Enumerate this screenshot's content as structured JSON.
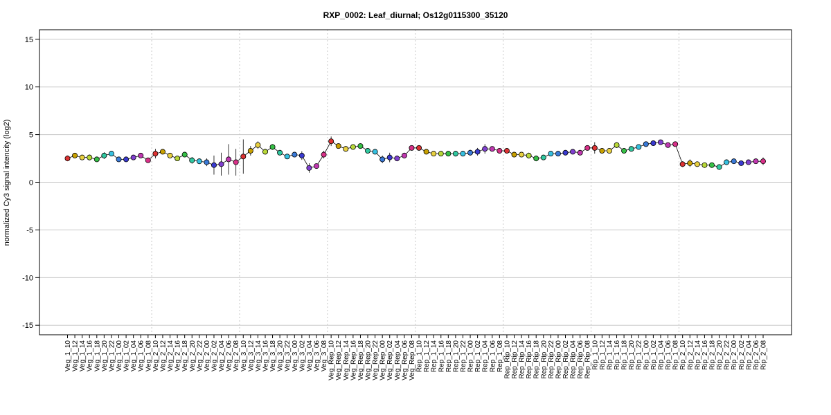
{
  "chart_data": {
    "type": "line",
    "title": "RXP_0002: Leaf_diurnal; Os12g0115300_35120",
    "ylabel": "normalized Cy3 signal intencity (log2)",
    "xlabel": "",
    "ylim": [
      -16,
      16
    ],
    "yticks": [
      -15,
      -10,
      -5,
      0,
      5,
      10,
      15
    ],
    "grid": true,
    "categories": [
      "Veg_1_10",
      "Veg_1_12",
      "Veg_1_14",
      "Veg_1_16",
      "Veg_1_18",
      "Veg_1_20",
      "Veg_1_22",
      "Veg_1_00",
      "Veg_1_02",
      "Veg_1_04",
      "Veg_1_06",
      "Veg_1_08",
      "Veg_2_10",
      "Veg_2_12",
      "Veg_2_14",
      "Veg_2_16",
      "Veg_2_18",
      "Veg_2_20",
      "Veg_2_22",
      "Veg_2_00",
      "Veg_2_02",
      "Veg_2_04",
      "Veg_2_06",
      "Veg_2_08",
      "Veg_3_10",
      "Veg_3_12",
      "Veg_3_14",
      "Veg_3_16",
      "Veg_3_18",
      "Veg_3_20",
      "Veg_3_22",
      "Veg_3_00",
      "Veg_3_02",
      "Veg_3_04",
      "Veg_3_06",
      "Veg_3_08",
      "Veg_Rep_10",
      "Veg_Rep_12",
      "Veg_Rep_14",
      "Veg_Rep_16",
      "Veg_Rep_18",
      "Veg_Rep_20",
      "Veg_Rep_22",
      "Veg_Rep_00",
      "Veg_Rep_02",
      "Veg_Rep_04",
      "Veg_Rep_06",
      "Veg_Rep_08",
      "Rep_1_10",
      "Rep_1_12",
      "Rep_1_14",
      "Rep_1_16",
      "Rep_1_18",
      "Rep_1_20",
      "Rep_1_22",
      "Rep_1_00",
      "Rep_1_02",
      "Rep_1_04",
      "Rep_1_06",
      "Rep_1_08",
      "Rep_Rip_10",
      "Rep_Rip_12",
      "Rep_Rip_14",
      "Rep_Rip_16",
      "Rep_Rip_18",
      "Rep_Rip_20",
      "Rep_Rip_22",
      "Rep_Rip_00",
      "Rep_Rip_02",
      "Rep_Rip_04",
      "Rep_Rip_06",
      "Rep_Rip_08",
      "Rip_1_10",
      "Rip_1_12",
      "Rip_1_14",
      "Rip_1_16",
      "Rip_1_18",
      "Rip_1_20",
      "Rip_1_22",
      "Rip_1_00",
      "Rip_1_02",
      "Rip_1_04",
      "Rip_1_06",
      "Rip_1_08",
      "Rip_2_10",
      "Rip_2_12",
      "Rip_2_14",
      "Rip_2_16",
      "Rip_2_18",
      "Rip_2_20",
      "Rip_2_22",
      "Rip_2_00",
      "Rip_2_02",
      "Rip_2_04",
      "Rip_2_06",
      "Rip_2_08"
    ],
    "values": [
      2.5,
      2.8,
      2.6,
      2.6,
      2.4,
      2.8,
      3.0,
      2.4,
      2.4,
      2.6,
      2.8,
      2.3,
      3.0,
      3.2,
      2.8,
      2.5,
      2.9,
      2.3,
      2.2,
      2.1,
      1.8,
      1.9,
      2.4,
      2.1,
      2.7,
      3.3,
      3.9,
      3.2,
      3.7,
      3.1,
      2.7,
      2.9,
      2.8,
      1.5,
      1.7,
      2.9,
      4.3,
      3.8,
      3.5,
      3.7,
      3.8,
      3.3,
      3.2,
      2.4,
      2.6,
      2.5,
      2.8,
      3.6,
      3.6,
      3.2,
      3.0,
      3.0,
      3.0,
      3.0,
      3.0,
      3.1,
      3.2,
      3.5,
      3.5,
      3.3,
      3.3,
      2.9,
      2.9,
      2.8,
      2.5,
      2.6,
      3.0,
      3.0,
      3.1,
      3.2,
      3.1,
      3.6,
      3.6,
      3.3,
      3.3,
      3.9,
      3.3,
      3.5,
      3.7,
      4.0,
      4.1,
      4.2,
      3.9,
      4.0,
      1.9,
      2.0,
      1.9,
      1.8,
      1.8,
      1.6,
      2.1,
      2.2,
      2.0,
      2.1,
      2.2,
      2.2
    ],
    "errors": [
      0.3,
      0.15,
      0.15,
      0.3,
      0.2,
      0.35,
      0.2,
      0.15,
      0.15,
      0.15,
      0.15,
      0.15,
      0.5,
      0.2,
      0.2,
      0.2,
      0.2,
      0.35,
      0.3,
      0.4,
      1.0,
      1.2,
      1.6,
      1.4,
      1.8,
      0.5,
      0.4,
      0.3,
      0.3,
      0.2,
      0.2,
      0.2,
      0.45,
      0.5,
      0.2,
      0.4,
      0.5,
      0.25,
      0.3,
      0.2,
      0.2,
      0.2,
      0.25,
      0.4,
      0.5,
      0.3,
      0.3,
      0.2,
      0.2,
      0.15,
      0.15,
      0.15,
      0.25,
      0.3,
      0.3,
      0.3,
      0.4,
      0.5,
      0.2,
      0.2,
      0.2,
      0.15,
      0.2,
      0.3,
      0.3,
      0.2,
      0.2,
      0.15,
      0.2,
      0.2,
      0.2,
      0.2,
      0.6,
      0.25,
      0.2,
      0.3,
      0.2,
      0.2,
      0.2,
      0.15,
      0.15,
      0.15,
      0.15,
      0.2,
      0.3,
      0.4,
      0.2,
      0.2,
      0.2,
      0.3,
      0.3,
      0.2,
      0.2,
      0.2,
      0.2,
      0.4
    ],
    "group_colors": [
      "#dd3333",
      "#c8a000",
      "#e8d040",
      "#b8d838",
      "#36c046",
      "#30c8a0",
      "#36c0e0",
      "#3a7ad8",
      "#3a3ad0",
      "#8040d0",
      "#c038b0",
      "#d83088"
    ]
  }
}
